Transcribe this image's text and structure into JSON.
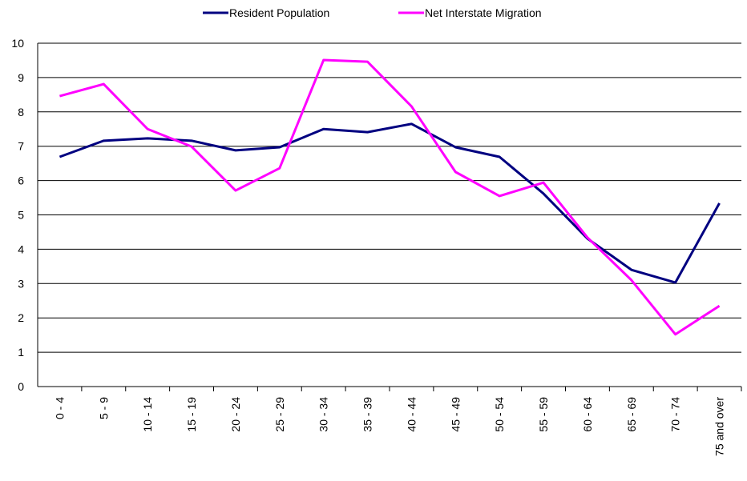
{
  "chart_data": {
    "type": "line",
    "categories": [
      "0 - 4",
      "5 - 9",
      "10 - 14",
      "15 - 19",
      "20 - 24",
      "25 - 29",
      "30 - 34",
      "35 - 39",
      "40 - 44",
      "45 - 49",
      "50 - 54",
      "55 - 59",
      "60 - 64",
      "65 - 69",
      "70 - 74",
      "75 and over"
    ],
    "series": [
      {
        "name": "Resident Population",
        "color": "#000080",
        "values": [
          6.69,
          7.16,
          7.23,
          7.16,
          6.88,
          6.97,
          7.5,
          7.41,
          7.65,
          6.97,
          6.69,
          5.62,
          4.31,
          3.4,
          3.03,
          5.34
        ]
      },
      {
        "name": "Net Interstate Migration",
        "color": "#ff00ff",
        "values": [
          8.46,
          8.81,
          7.5,
          6.99,
          5.71,
          6.36,
          9.51,
          9.46,
          8.16,
          6.25,
          5.55,
          5.94,
          4.34,
          3.1,
          1.52,
          2.35
        ]
      }
    ],
    "ylim": [
      0,
      10
    ],
    "yticks": [
      0,
      1,
      2,
      3,
      4,
      5,
      6,
      7,
      8,
      9,
      10
    ],
    "grid": true,
    "legend": "top"
  }
}
